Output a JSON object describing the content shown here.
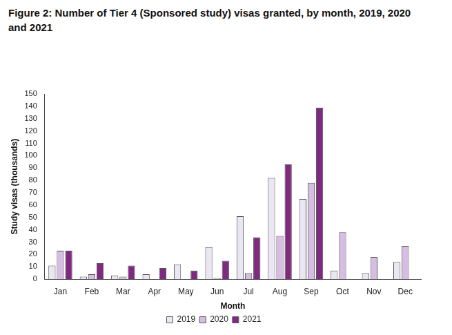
{
  "chart_data": {
    "type": "bar",
    "title": "Figure 2: Number of Tier 4 (Sponsored study) visas granted, by month, 2019, 2020 and 2021",
    "x_label": "Month",
    "y_label": "Study visas (thousands)",
    "categories": [
      "Jan",
      "Feb",
      "Mar",
      "Apr",
      "May",
      "Jun",
      "Jul",
      "Aug",
      "Sep",
      "Oct",
      "Nov",
      "Dec"
    ],
    "series": [
      {
        "name": "2019",
        "color": "#ebe7f2",
        "values": [
          11,
          2,
          3,
          4,
          12,
          26,
          51,
          82,
          65,
          7,
          5,
          14
        ]
      },
      {
        "name": "2020",
        "color": "#d7bde3",
        "values": [
          23,
          4,
          2,
          0,
          0,
          1,
          5,
          35,
          78,
          38,
          18,
          27
        ]
      },
      {
        "name": "2021",
        "color": "#7f2a80",
        "values": [
          23,
          13,
          11,
          9,
          7,
          15,
          34,
          93,
          139,
          null,
          null,
          null
        ]
      }
    ],
    "ylim": [
      0,
      150
    ],
    "yticks": [
      0,
      10,
      20,
      30,
      40,
      50,
      60,
      70,
      80,
      90,
      100,
      110,
      120,
      130,
      140,
      150
    ],
    "grid": false,
    "legend": "bottom"
  }
}
